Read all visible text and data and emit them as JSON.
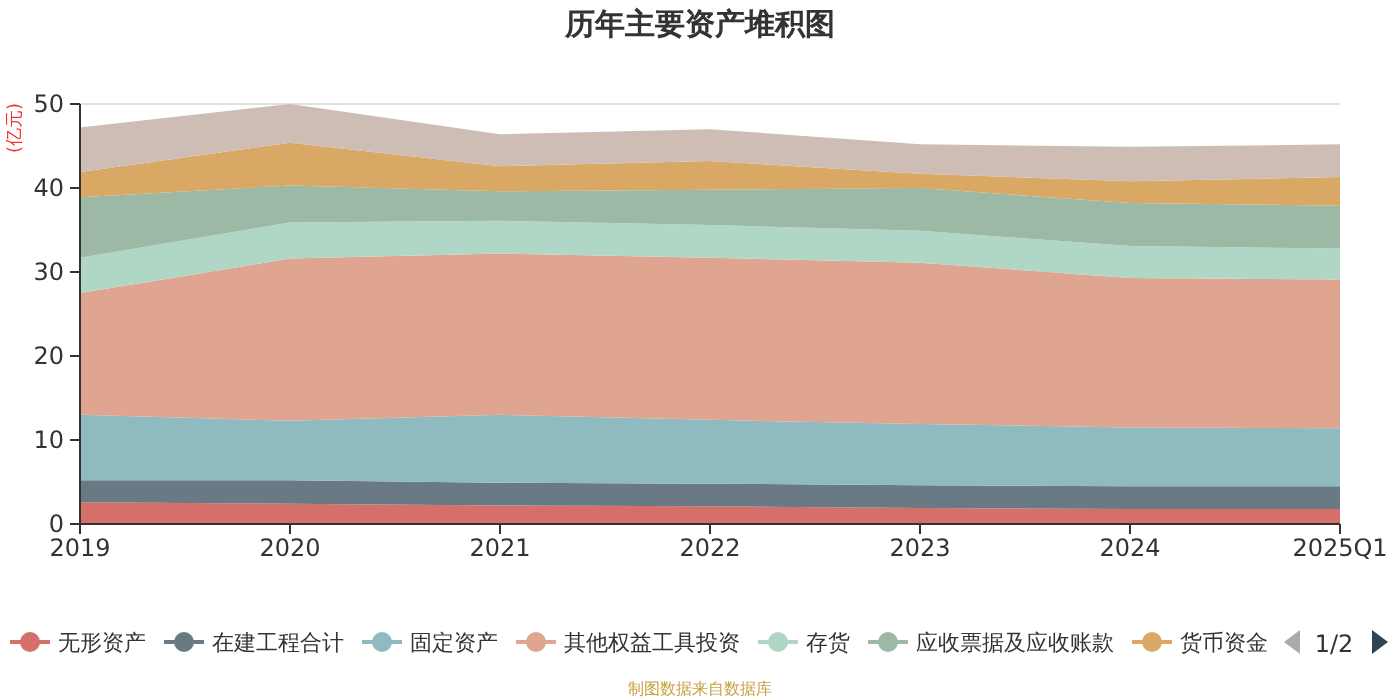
{
  "chart_data": {
    "type": "area",
    "stacked": true,
    "title": "历年主要资产堆积图",
    "ylabel": "(亿元)",
    "categories": [
      "2019",
      "2020",
      "2021",
      "2022",
      "2023",
      "2024",
      "2025Q1"
    ],
    "ylim": [
      0,
      50
    ],
    "yticks": [
      0,
      10,
      20,
      30,
      40,
      50
    ],
    "grid": "y",
    "legend": "bottom",
    "series": [
      {
        "name": "无形资产",
        "color": "#d46f6a",
        "values": [
          2.6,
          2.4,
          2.2,
          2.1,
          1.9,
          1.8,
          1.8
        ]
      },
      {
        "name": "在建工程合计",
        "color": "#6a7a84",
        "values": [
          2.6,
          2.8,
          2.7,
          2.7,
          2.7,
          2.7,
          2.7
        ]
      },
      {
        "name": "固定资产",
        "color": "#8fbac0",
        "values": [
          7.8,
          7.1,
          8.1,
          7.6,
          7.3,
          7.0,
          6.9
        ]
      },
      {
        "name": "其他权益工具投资",
        "color": "#dfa590",
        "values": [
          14.5,
          19.3,
          19.2,
          19.3,
          19.2,
          17.8,
          17.7
        ]
      },
      {
        "name": "存货",
        "color": "#b0d7c5",
        "values": [
          4.2,
          4.3,
          3.9,
          3.9,
          3.8,
          3.8,
          3.7
        ]
      },
      {
        "name": "应收票据及应收账款",
        "color": "#9cb9a6",
        "values": [
          7.2,
          4.4,
          3.5,
          4.2,
          5.1,
          5.1,
          5.1
        ]
      },
      {
        "name": "货币资金",
        "color": "#d9a865",
        "values": [
          3.0,
          5.1,
          3.0,
          3.4,
          1.7,
          2.6,
          3.4
        ]
      },
      {
        "color": "#cdbdb5",
        "values": [
          5.3,
          4.6,
          3.8,
          3.8,
          3.5,
          4.1,
          3.9
        ]
      }
    ],
    "annotations": [
      "1/2",
      "制图数据来自数据库"
    ]
  }
}
